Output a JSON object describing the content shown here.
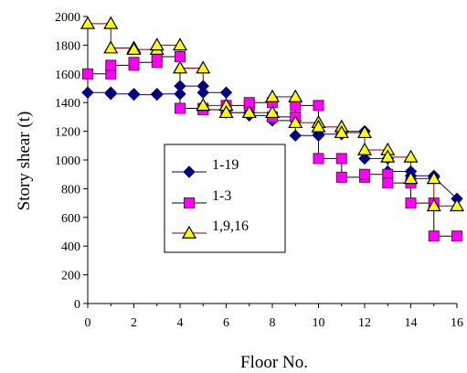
{
  "chart_data": {
    "type": "line",
    "xlabel": "Floor No.",
    "ylabel": "Story shear (t)",
    "xlim": [
      0,
      16
    ],
    "ylim": [
      0,
      2000
    ],
    "xticks": [
      "0",
      "2",
      "4",
      "6",
      "8",
      "10",
      "12",
      "14",
      "16"
    ],
    "yticks": [
      "0",
      "200",
      "400",
      "600",
      "800",
      "1000",
      "1200",
      "1400",
      "1600",
      "1800",
      "2000"
    ],
    "grid": false,
    "legend_position": "center-left",
    "series": [
      {
        "name": "1-19",
        "color": "#000080",
        "marker": "diamond",
        "marker_fill": "#000080",
        "line_color": "#000080",
        "x": [
          0,
          1,
          1,
          2,
          2,
          3,
          3,
          4,
          4,
          5,
          5,
          6,
          6,
          7,
          7,
          8,
          8,
          9,
          9,
          10,
          10,
          11,
          11,
          12,
          12,
          13,
          13,
          14,
          14,
          15,
          15,
          16
        ],
        "y": [
          1470,
          1470,
          1460,
          1460,
          1455,
          1455,
          1460,
          1460,
          1515,
          1515,
          1470,
          1470,
          1330,
          1330,
          1310,
          1310,
          1275,
          1275,
          1170,
          1170,
          1180,
          1180,
          1200,
          1200,
          1010,
          1010,
          920,
          920,
          890,
          890,
          880,
          730
        ]
      },
      {
        "name": "1-3",
        "color": "#ff00ff",
        "marker": "square",
        "marker_fill": "#ff00ff",
        "line_color": "#000000",
        "x": [
          0,
          1,
          1,
          2,
          2,
          3,
          3,
          4,
          4,
          5,
          5,
          6,
          6,
          7,
          7,
          8,
          8,
          9,
          9,
          10,
          10,
          11,
          11,
          12,
          12,
          13,
          13,
          14,
          14,
          15,
          15,
          16
        ],
        "y": [
          1600,
          1600,
          1660,
          1660,
          1680,
          1680,
          1720,
          1720,
          1360,
          1360,
          1350,
          1350,
          1380,
          1380,
          1400,
          1400,
          1300,
          1300,
          1380,
          1380,
          1010,
          1010,
          880,
          880,
          900,
          900,
          840,
          840,
          700,
          700,
          470,
          470
        ]
      },
      {
        "name": "1,9,16",
        "color": "#ffff00",
        "marker": "triangle",
        "marker_fill": "#ffff00",
        "line_color": "#8b0000",
        "x": [
          0,
          1,
          1,
          2,
          2,
          3,
          3,
          4,
          4,
          5,
          5,
          6,
          6,
          7,
          7,
          8,
          8,
          9,
          9,
          10,
          10,
          11,
          11,
          12,
          12,
          13,
          13,
          14,
          14,
          15,
          15,
          16
        ],
        "y": [
          1950,
          1950,
          1780,
          1780,
          1770,
          1770,
          1800,
          1800,
          1640,
          1640,
          1380,
          1380,
          1330,
          1330,
          1330,
          1330,
          1440,
          1440,
          1260,
          1260,
          1230,
          1230,
          1190,
          1190,
          1070,
          1070,
          1020,
          1020,
          870,
          870,
          680,
          680
        ]
      }
    ]
  }
}
